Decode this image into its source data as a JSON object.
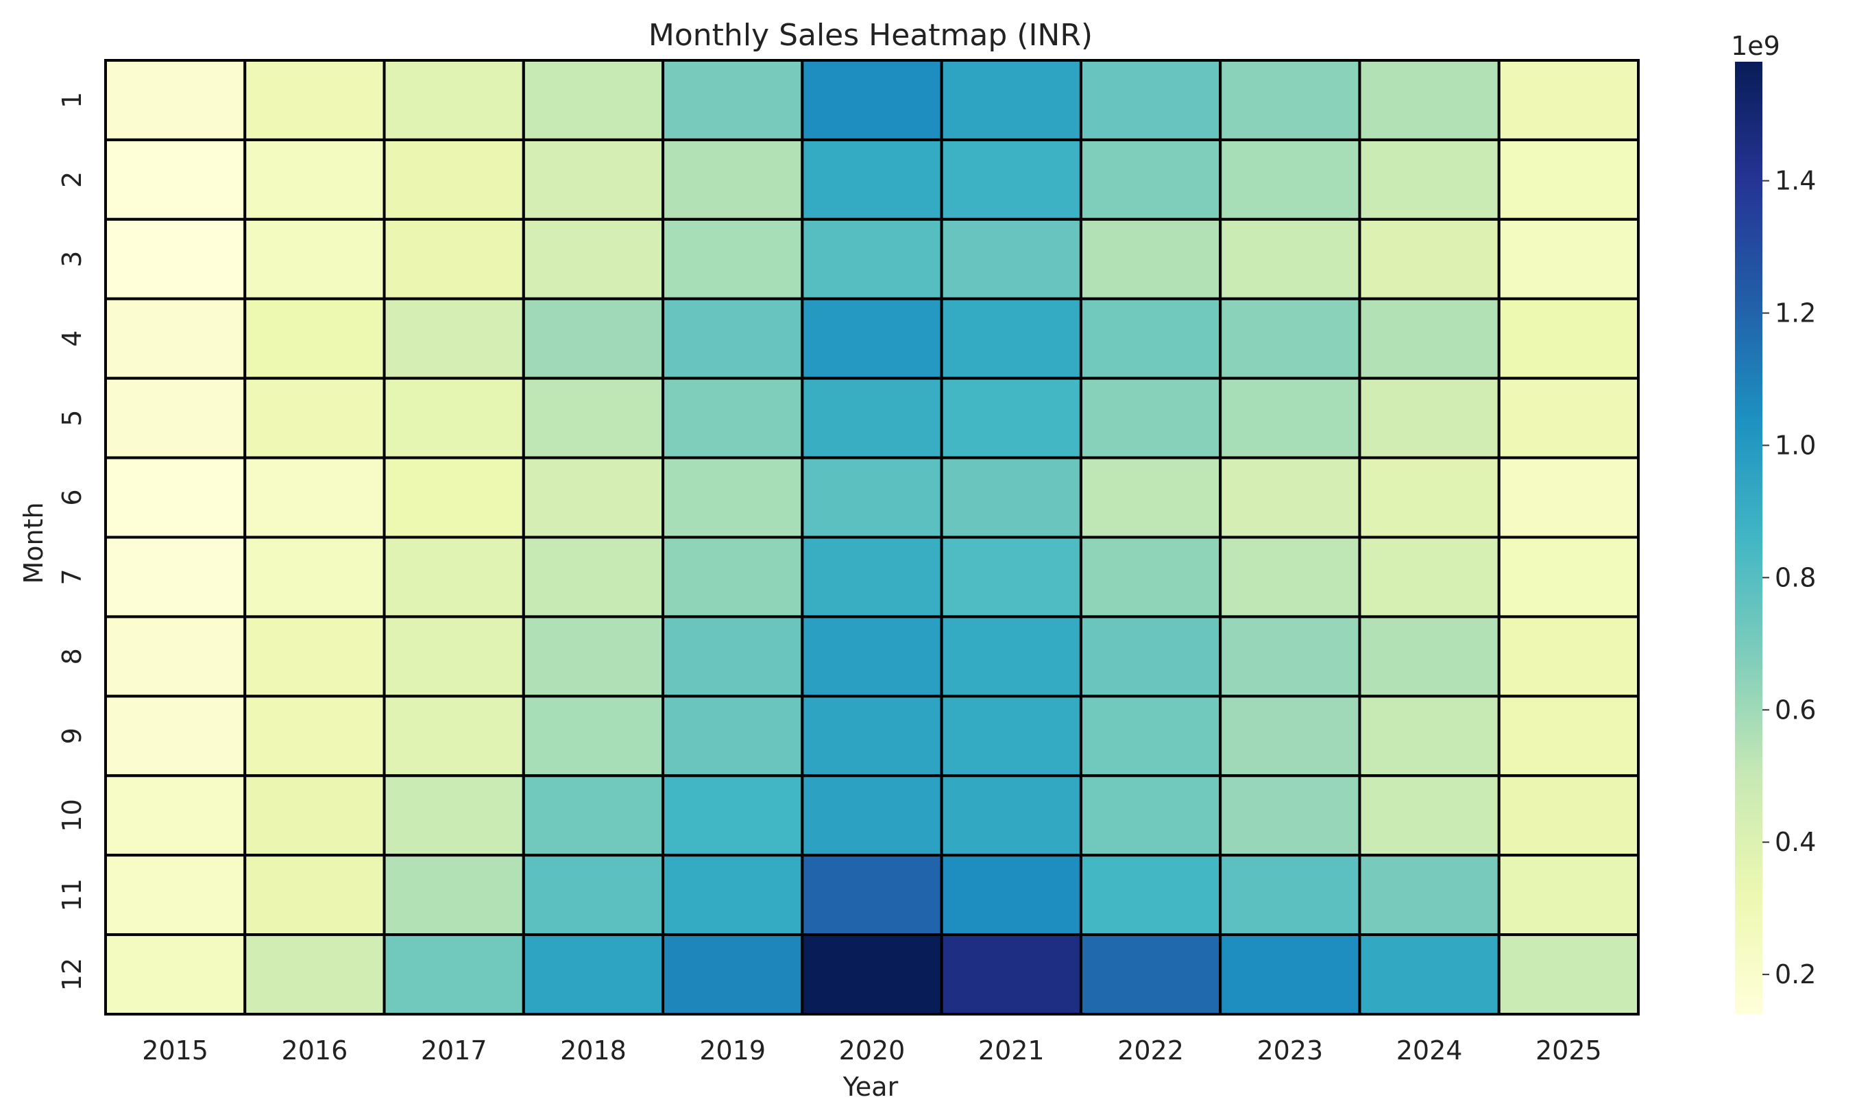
{
  "chart_data": {
    "type": "heatmap",
    "title": "Monthly Sales Heatmap (INR)",
    "xlabel": "Year",
    "ylabel": "Month",
    "x": [
      "2015",
      "2016",
      "2017",
      "2018",
      "2019",
      "2020",
      "2021",
      "2022",
      "2023",
      "2024",
      "2025"
    ],
    "y": [
      "1",
      "2",
      "3",
      "4",
      "5",
      "6",
      "7",
      "8",
      "9",
      "10",
      "11",
      "12"
    ],
    "values": [
      [
        0.18,
        0.3,
        0.38,
        0.5,
        0.7,
        1.05,
        0.95,
        0.75,
        0.65,
        0.55,
        0.3
      ],
      [
        0.15,
        0.25,
        0.33,
        0.44,
        0.55,
        0.92,
        0.88,
        0.68,
        0.58,
        0.48,
        0.27
      ],
      [
        0.14,
        0.25,
        0.33,
        0.44,
        0.58,
        0.8,
        0.75,
        0.55,
        0.48,
        0.4,
        0.25
      ],
      [
        0.18,
        0.32,
        0.44,
        0.6,
        0.75,
        1.0,
        0.92,
        0.72,
        0.65,
        0.55,
        0.32
      ],
      [
        0.18,
        0.3,
        0.36,
        0.52,
        0.68,
        0.9,
        0.85,
        0.66,
        0.58,
        0.45,
        0.3
      ],
      [
        0.15,
        0.22,
        0.32,
        0.44,
        0.58,
        0.78,
        0.74,
        0.52,
        0.44,
        0.38,
        0.24
      ],
      [
        0.16,
        0.25,
        0.38,
        0.5,
        0.64,
        0.9,
        0.82,
        0.64,
        0.52,
        0.43,
        0.27
      ],
      [
        0.18,
        0.3,
        0.38,
        0.56,
        0.74,
        0.97,
        0.92,
        0.74,
        0.62,
        0.55,
        0.31
      ],
      [
        0.18,
        0.3,
        0.38,
        0.58,
        0.74,
        0.95,
        0.92,
        0.72,
        0.6,
        0.5,
        0.31
      ],
      [
        0.22,
        0.33,
        0.48,
        0.72,
        0.86,
        0.96,
        0.93,
        0.72,
        0.62,
        0.48,
        0.33
      ],
      [
        0.22,
        0.33,
        0.55,
        0.78,
        0.92,
        1.2,
        1.05,
        0.85,
        0.78,
        0.7,
        0.35
      ],
      [
        0.25,
        0.45,
        0.72,
        0.95,
        1.08,
        1.58,
        1.45,
        1.18,
        1.05,
        0.93,
        0.48
      ]
    ],
    "vmin": 0.14,
    "vmax": 1.58,
    "colorbar": {
      "multiplier": "1e9",
      "ticks": [
        0.2,
        0.4,
        0.6,
        0.8,
        1.0,
        1.2,
        1.4
      ],
      "tick_labels": [
        "0.2",
        "0.4",
        "0.6",
        "0.8",
        "1.0",
        "1.2",
        "1.4"
      ]
    },
    "colormap": "YlGnBu",
    "cell_border_color": "#000000",
    "grid": false,
    "legend": "colorbar-right"
  }
}
